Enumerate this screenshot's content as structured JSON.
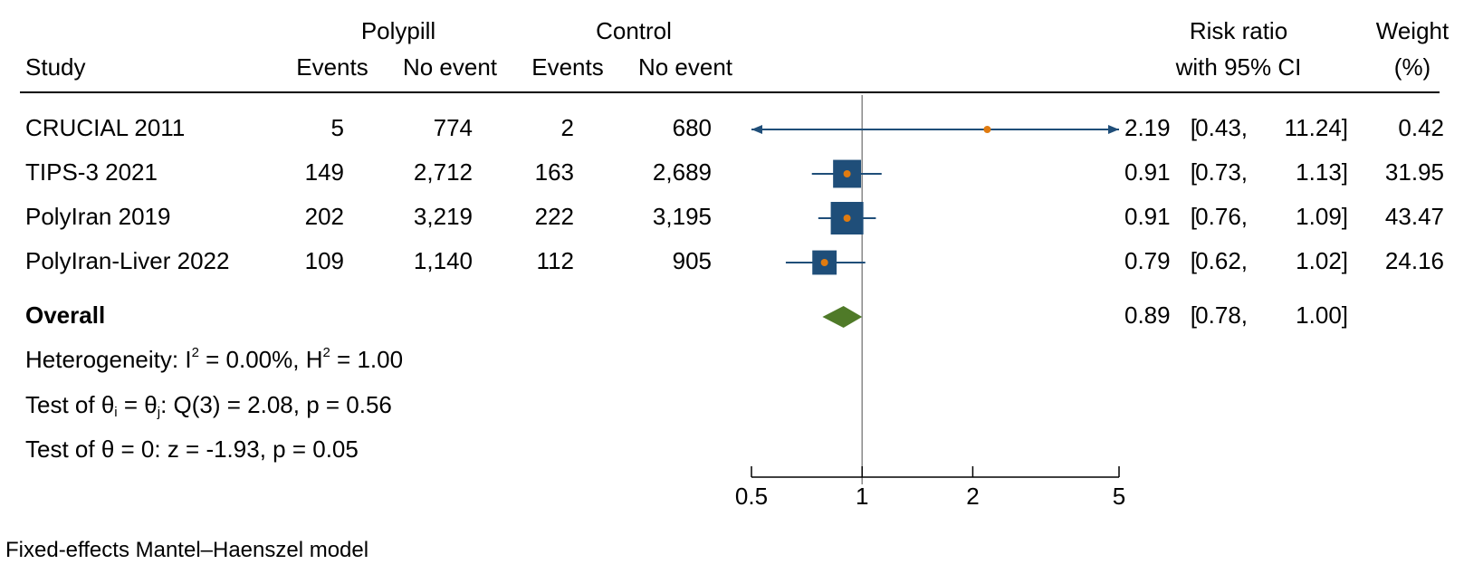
{
  "header": {
    "group1": "Polypill",
    "group2": "Control",
    "study": "Study",
    "events": "Events",
    "no_event": "No event",
    "rr_line1": "Risk ratio",
    "rr_line2": "with 95% CI",
    "weight_line1": "Weight",
    "weight_line2": "(%)"
  },
  "rows": [
    {
      "study": "CRUCIAL 2011",
      "p_events": "5",
      "p_no": "774",
      "c_events": "2",
      "c_no": "680",
      "rr": "2.19",
      "lo": "0.43,",
      "hi": "11.24]",
      "weight": "0.42"
    },
    {
      "study": "TIPS-3 2021",
      "p_events": "149",
      "p_no": "2,712",
      "c_events": "163",
      "c_no": "2,689",
      "rr": "0.91",
      "lo": "0.73,",
      "hi": "1.13]",
      "weight": "31.95"
    },
    {
      "study": "PolyIran 2019",
      "p_events": "202",
      "p_no": "3,219",
      "c_events": "222",
      "c_no": "3,195",
      "rr": "0.91",
      "lo": "0.76,",
      "hi": "1.09]",
      "weight": "43.47"
    },
    {
      "study": "PolyIran-Liver 2022",
      "p_events": "109",
      "p_no": "1,140",
      "c_events": "112",
      "c_no": "905",
      "rr": "0.79",
      "lo": "0.62,",
      "hi": "1.02]",
      "weight": "24.16"
    }
  ],
  "overall": {
    "label": "Overall",
    "rr": "0.89",
    "lo": "0.78,",
    "hi": "1.00]"
  },
  "stats": {
    "het_prefix": "Heterogeneity: I",
    "het_sup": "2",
    "het_mid": " = 0.00%, H",
    "het_sup2": "2",
    "het_end": " = 1.00",
    "test1_a": "Test of θ",
    "test1_sub1": "i",
    "test1_b": " = θ",
    "test1_sub2": "j",
    "test1_c": ": Q(3) = 2.08, p = 0.56",
    "test2": "Test of θ = 0: z = -1.93, p = 0.05"
  },
  "footnote": "Fixed-effects Mantel–Haenszel model",
  "chart_data": {
    "type": "forest",
    "xscale": "log",
    "xlim": [
      0.5,
      5
    ],
    "xticks": [
      0.5,
      1,
      2,
      5
    ],
    "xtick_labels": [
      "0.5",
      "1",
      "2",
      "5"
    ],
    "null_line": 1,
    "studies": [
      {
        "label": "CRUCIAL 2011",
        "rr": 2.19,
        "lo": 0.43,
        "hi": 11.24,
        "weight": 0.42
      },
      {
        "label": "TIPS-3 2021",
        "rr": 0.91,
        "lo": 0.73,
        "hi": 1.13,
        "weight": 31.95
      },
      {
        "label": "PolyIran 2019",
        "rr": 0.91,
        "lo": 0.76,
        "hi": 1.09,
        "weight": 43.47
      },
      {
        "label": "PolyIran-Liver 2022",
        "rr": 0.79,
        "lo": 0.62,
        "hi": 1.02,
        "weight": 24.16
      }
    ],
    "overall": {
      "rr": 0.89,
      "lo": 0.78,
      "hi": 1.0
    },
    "colors": {
      "box": "#1f4e79",
      "point": "#e07b10",
      "ci_line": "#1f4e79",
      "diamond": "#4f7a28",
      "ref_line": "#888888",
      "axis": "#000000"
    }
  }
}
